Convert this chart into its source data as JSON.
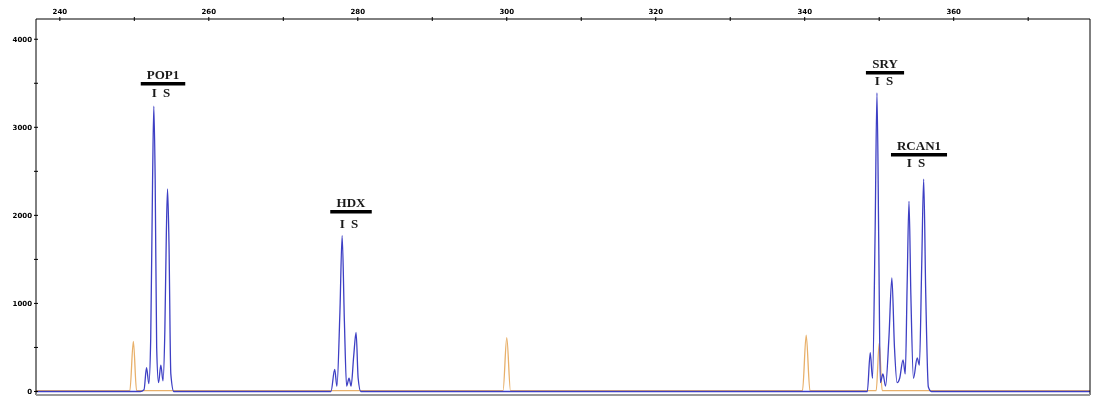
{
  "chart_data": {
    "type": "line",
    "xlim": [
      236.8,
      378.3
    ],
    "ylim": [
      -40,
      4230
    ],
    "xticks": [
      240,
      {
        "value": 250,
        "label": null
      },
      260,
      {
        "value": 270,
        "label": null
      },
      280,
      {
        "value": 290,
        "label": null
      },
      300,
      {
        "value": 310,
        "label": null
      },
      320,
      {
        "value": 330,
        "label": null
      },
      340,
      {
        "value": 350,
        "label": null
      },
      360,
      {
        "value": 370,
        "label": null
      }
    ],
    "yticks": [
      0,
      {
        "value": 500,
        "label": null
      },
      1000,
      {
        "value": 1500,
        "label": null
      },
      2000,
      {
        "value": 2500,
        "label": null
      },
      3000,
      {
        "value": 3500,
        "label": null
      },
      4000
    ],
    "line_style": "solid",
    "series": [
      {
        "color": "#e8b06a",
        "x": [
          236.8,
          249.4,
          249.87,
          250.3,
          299.5,
          300.0,
          300.5,
          339.7,
          340.2,
          340.7,
          349.6,
          350.0,
          350.4,
          378.3
        ],
        "values": [
          10,
          10,
          570,
          10,
          10,
          610,
          10,
          10,
          640,
          10,
          10,
          550,
          10,
          10
        ]
      },
      {
        "color": "#3d3fc4",
        "x": [
          236.8,
          250.8,
          251.3,
          251.64,
          251.95,
          252.2,
          252.45,
          252.62,
          252.8,
          253.0,
          253.25,
          253.56,
          253.85,
          254.1,
          254.3,
          254.46,
          254.65,
          254.9,
          255.3,
          276.4,
          276.9,
          277.2,
          277.6,
          277.9,
          278.2,
          278.5,
          278.83,
          279.1,
          279.45,
          279.77,
          280.05,
          280.4,
          348.4,
          348.8,
          349.1,
          349.45,
          349.7,
          349.95,
          350.15,
          350.5,
          350.85,
          351.3,
          351.7,
          352.05,
          352.4,
          352.75,
          353.2,
          353.5,
          353.75,
          354.0,
          354.25,
          354.6,
          355.1,
          355.4,
          355.7,
          355.97,
          356.25,
          356.6,
          357.0,
          378.3
        ],
        "values": [
          0,
          0,
          20,
          270,
          90,
          600,
          2400,
          3240,
          2400,
          500,
          100,
          300,
          120,
          700,
          1800,
          2300,
          1700,
          200,
          0,
          0,
          250,
          60,
          900,
          1770,
          800,
          60,
          150,
          60,
          400,
          670,
          150,
          0,
          0,
          440,
          150,
          1800,
          3390,
          1600,
          100,
          200,
          60,
          600,
          1290,
          500,
          100,
          150,
          360,
          200,
          1200,
          2160,
          1100,
          150,
          380,
          300,
          1400,
          2410,
          1100,
          50,
          0,
          0
        ]
      }
    ],
    "annotations": [
      "POP1",
      "I S",
      "HDX",
      "I S",
      "SRY",
      "I S",
      "RCAN1",
      "I S"
    ]
  }
}
